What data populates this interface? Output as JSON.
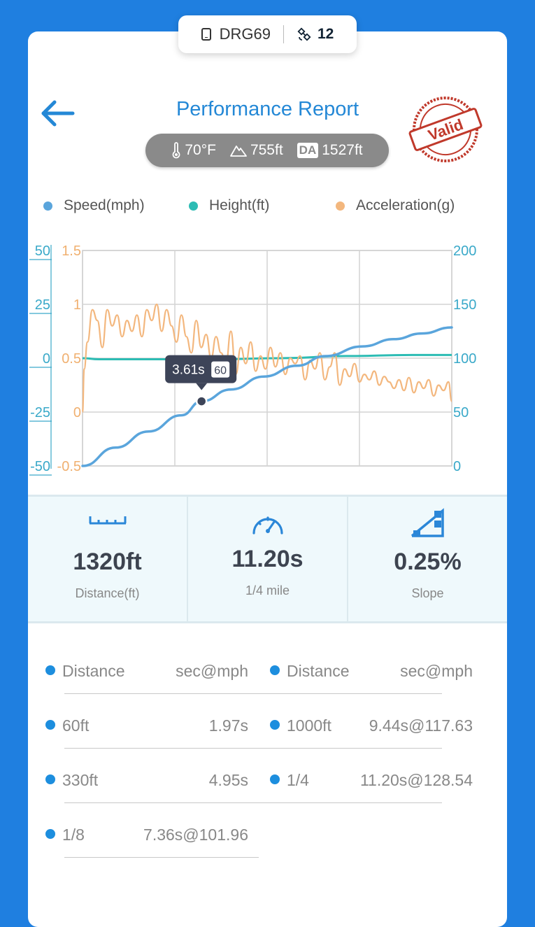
{
  "device": {
    "name": "DRG69",
    "satellites": "12"
  },
  "header": {
    "title": "Performance Report",
    "stamp_text": "Valid"
  },
  "conditions": {
    "temperature": "70°F",
    "altitude": "755ft",
    "da_badge": "DA",
    "density_altitude": "1527ft"
  },
  "legend": [
    {
      "label": "Speed(mph)",
      "color": "#5aa5dc"
    },
    {
      "label": "Height(ft)",
      "color": "#2dbcb4"
    },
    {
      "label": "Acceleration(g)",
      "color": "#f3b77e"
    }
  ],
  "chart_data": {
    "type": "line",
    "axes": {
      "height_ticks": [
        "50",
        "25",
        "0",
        "-25",
        "-50"
      ],
      "accel_ticks": [
        "1.5",
        "1",
        "0.5",
        "0",
        "-0.5"
      ],
      "speed_ticks": [
        "200",
        "150",
        "100",
        "50",
        "0"
      ],
      "height_range": [
        -50,
        50
      ],
      "accel_range": [
        -0.5,
        1.5
      ],
      "speed_range": [
        0,
        200
      ],
      "time_range": [
        0,
        11.2
      ]
    },
    "grid": true,
    "series": [
      {
        "name": "Speed(mph)",
        "color": "#5aa5dc",
        "t": [
          0,
          1,
          2,
          3,
          3.61,
          4.5,
          5.5,
          6.5,
          7.36,
          8.5,
          9.44,
          10.3,
          11.2
        ],
        "y": [
          0,
          17,
          32,
          47,
          60,
          71,
          83,
          93,
          101.96,
          111,
          117.63,
          123,
          128.54
        ]
      },
      {
        "name": "Height(ft)",
        "color": "#2dbcb4",
        "t": [
          0,
          0.5,
          2,
          4,
          6,
          8,
          10,
          11.2
        ],
        "y": [
          0,
          -0.5,
          -0.5,
          -0.5,
          0,
          1,
          1.5,
          1.5
        ]
      },
      {
        "name": "Acceleration(g)",
        "color": "#f3b77e",
        "t": [
          0,
          0.05,
          0.15,
          0.3,
          0.45,
          0.6,
          0.75,
          0.9,
          1.05,
          1.2,
          1.35,
          1.5,
          1.65,
          1.8,
          1.95,
          2.1,
          2.25,
          2.4,
          2.55,
          2.7,
          2.85,
          3.0,
          3.15,
          3.3,
          3.45,
          3.6,
          3.75,
          3.9,
          4.05,
          4.2,
          4.35,
          4.5,
          4.65,
          4.8,
          4.95,
          5.1,
          5.25,
          5.4,
          5.55,
          5.7,
          5.85,
          6.0,
          6.15,
          6.3,
          6.45,
          6.6,
          6.75,
          6.9,
          7.05,
          7.2,
          7.35,
          7.5,
          7.65,
          7.8,
          7.95,
          8.1,
          8.25,
          8.4,
          8.55,
          8.7,
          8.85,
          9.0,
          9.15,
          9.3,
          9.45,
          9.6,
          9.75,
          9.9,
          10.05,
          10.2,
          10.35,
          10.5,
          10.65,
          10.8,
          10.95,
          11.1,
          11.2
        ],
        "y": [
          0,
          0.4,
          0.65,
          0.95,
          0.85,
          0.6,
          0.95,
          0.8,
          0.9,
          0.7,
          0.85,
          0.75,
          0.9,
          0.7,
          0.95,
          0.85,
          1.0,
          0.75,
          0.95,
          0.8,
          0.65,
          0.9,
          0.7,
          0.55,
          0.85,
          0.6,
          0.72,
          0.5,
          0.7,
          0.55,
          0.45,
          0.75,
          0.35,
          0.6,
          0.45,
          0.65,
          0.38,
          0.52,
          0.4,
          0.6,
          0.42,
          0.55,
          0.35,
          0.5,
          0.45,
          0.52,
          0.3,
          0.48,
          0.4,
          0.55,
          0.3,
          0.42,
          0.55,
          0.25,
          0.4,
          0.33,
          0.45,
          0.28,
          0.35,
          0.3,
          0.38,
          0.25,
          0.33,
          0.28,
          0.22,
          0.3,
          0.2,
          0.32,
          0.18,
          0.28,
          0.22,
          0.3,
          0.15,
          0.25,
          0.2,
          0.28,
          0.1
        ]
      }
    ],
    "tooltip": {
      "time": "3.61s",
      "speed": "60",
      "t": 3.61,
      "y": 60
    }
  },
  "stats": [
    {
      "icon": "ruler-icon",
      "value": "1320ft",
      "label": "Distance(ft)"
    },
    {
      "icon": "speedometer-icon",
      "value": "11.20s",
      "label": "1/4 mile"
    },
    {
      "icon": "slope-icon",
      "value": "0.25%",
      "label": "Slope"
    }
  ],
  "results": {
    "header": {
      "distance": "Distance",
      "metric": "sec@mph"
    },
    "left": [
      {
        "distance": "60ft",
        "value": "1.97s"
      },
      {
        "distance": "330ft",
        "value": "4.95s"
      },
      {
        "distance": "1/8",
        "value": "7.36s@101.96"
      }
    ],
    "right": [
      {
        "distance": "1000ft",
        "value": "9.44s@117.63"
      },
      {
        "distance": "1/4",
        "value": "11.20s@128.54"
      }
    ]
  }
}
